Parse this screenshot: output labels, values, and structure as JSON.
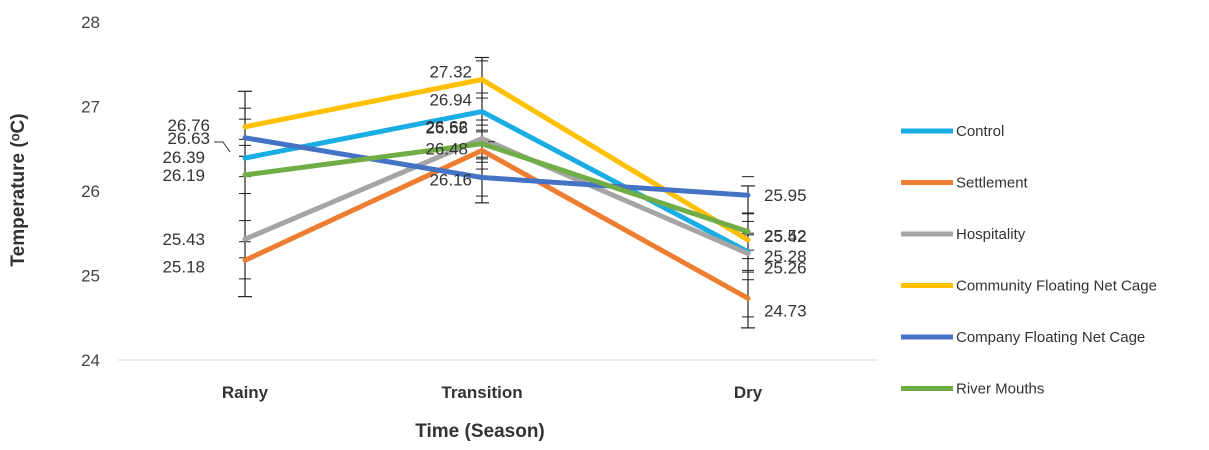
{
  "chart_data": {
    "type": "line",
    "categories": [
      "Rainy",
      "Transition",
      "Dry"
    ],
    "xlabel": "Time (Season)",
    "ylabel": "Temperature (ᵒC)",
    "ylim": [
      24,
      28
    ],
    "yticks": [
      "24",
      "25",
      "26",
      "27",
      "28"
    ],
    "grid": false,
    "legend_position": "right",
    "error_bars": true,
    "series": [
      {
        "name": "Control",
        "color": "#1AADE4",
        "values": [
          26.39,
          26.94,
          25.28
        ],
        "labels": [
          "26.39",
          "26.94",
          "25.28"
        ]
      },
      {
        "name": "Settlement",
        "color": "#ED7D31",
        "values": [
          25.18,
          26.48,
          24.73
        ],
        "labels": [
          "25.18",
          "26.48",
          "24.73"
        ]
      },
      {
        "name": "Hospitality",
        "color": "#A5A5A5",
        "values": [
          25.43,
          26.62,
          25.26
        ],
        "labels": [
          "25.43",
          "26.62",
          "25.26"
        ]
      },
      {
        "name": "Community Floating Net Cage",
        "color": "#FFC000",
        "values": [
          26.76,
          27.32,
          25.42
        ],
        "labels": [
          "26.76",
          "27.32",
          "25.42"
        ]
      },
      {
        "name": "Company Floating Net Cage",
        "color": "#4472C4",
        "values": [
          26.63,
          26.16,
          25.95
        ],
        "labels": [
          "26.63",
          "26.16",
          "25.95"
        ]
      },
      {
        "name": "River Mouths",
        "color": "#70AD47",
        "values": [
          26.19,
          26.56,
          25.52
        ],
        "labels": [
          "26.19",
          "26.56",
          "25.52"
        ]
      }
    ]
  }
}
